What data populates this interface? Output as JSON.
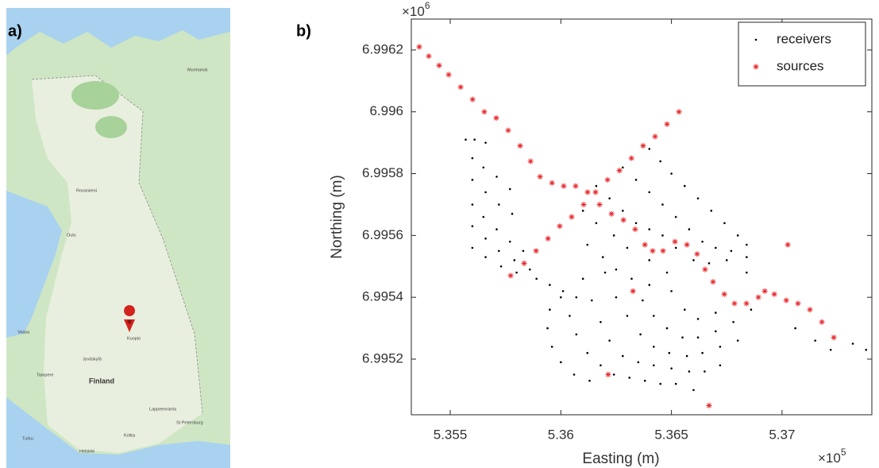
{
  "panel_labels": [
    "a)",
    "b)"
  ],
  "map": {
    "labels": [
      "Finland",
      "Oulu",
      "Kuopio",
      "Tampere",
      "Helsinki",
      "Turku",
      "St Petersburg",
      "Rovaniemi",
      "Vaasa",
      "Jyväskylä",
      "Lappeenranta",
      "Murmansk",
      "Kotka"
    ]
  },
  "chart_data": {
    "type": "scatter",
    "xlabel": "Easting (m)",
    "ylabel": "Northing (m)",
    "x_multiplier": {
      "base": "×10",
      "exponent": "5"
    },
    "y_multiplier": {
      "base": "×10",
      "exponent": "6"
    },
    "xlim": [
      5.35324,
      5.37406
    ],
    "ylim": [
      6.99502,
      6.9963
    ],
    "xticks": [
      5.355,
      5.36,
      5.365,
      5.37
    ],
    "yticks": [
      6.9952,
      6.9954,
      6.9956,
      6.9958,
      6.996,
      6.9962
    ],
    "legend": "upper right",
    "series": [
      {
        "name": "receivers",
        "color": "#000000",
        "marker": "dot",
        "x": [
          5.3557,
          5.3561,
          5.3566,
          5.356,
          5.3565,
          5.3571,
          5.3577,
          5.356,
          5.3566,
          5.3572,
          5.3578,
          5.356,
          5.3565,
          5.3571,
          5.3577,
          5.3583,
          5.356,
          5.3566,
          5.3572,
          5.3579,
          5.3586,
          5.356,
          5.3566,
          5.3573,
          5.358,
          5.3589,
          5.3595,
          5.3601,
          5.3607,
          5.364,
          5.3645,
          5.365,
          5.3656,
          5.3662,
          5.3668,
          5.3674,
          5.368,
          5.3628,
          5.3634,
          5.364,
          5.3646,
          5.3652,
          5.3658,
          5.3664,
          5.367,
          5.3677,
          5.3684,
          5.3616,
          5.3622,
          5.3628,
          5.3634,
          5.364,
          5.3646,
          5.3652,
          5.366,
          5.3667,
          5.3675,
          5.3684,
          5.361,
          5.3616,
          5.3624,
          5.363,
          5.364,
          5.3648,
          5.3612,
          5.3619,
          5.3625,
          5.364,
          5.3684,
          5.3595,
          5.3594,
          5.3596,
          5.36,
          5.3606,
          5.3613,
          5.36,
          5.3604,
          5.3607,
          5.3612,
          5.3618,
          5.3624,
          5.3631,
          5.3638,
          5.3645,
          5.3652,
          5.366,
          5.361,
          5.3614,
          5.3618,
          5.3622,
          5.3628,
          5.3635,
          5.3642,
          5.365,
          5.3658,
          5.3665,
          5.3672,
          5.362,
          5.3625,
          5.363,
          5.3636,
          5.3642,
          5.3649,
          5.3657,
          5.3664,
          5.3672,
          5.368,
          5.3632,
          5.3637,
          5.3642,
          5.3648,
          5.3655,
          5.3662,
          5.367,
          5.3678,
          5.3686,
          5.365,
          5.3656,
          5.3662,
          5.367,
          5.3706,
          5.3715,
          5.3722,
          5.3732,
          5.3738
        ],
        "values": [
          6.99591,
          6.99591,
          6.9959,
          6.99585,
          6.99582,
          6.99579,
          6.99575,
          6.99578,
          6.99574,
          6.9957,
          6.99567,
          6.9957,
          6.99566,
          6.99562,
          6.99558,
          6.99555,
          6.99563,
          6.99559,
          6.99555,
          6.99552,
          6.99549,
          6.99556,
          6.99553,
          6.9955,
          6.99548,
          6.99546,
          6.99544,
          6.99542,
          6.9954,
          6.99588,
          6.99584,
          6.9958,
          6.99576,
          6.99572,
          6.99568,
          6.99564,
          6.9956,
          6.99582,
          6.99578,
          6.99574,
          6.9957,
          6.99566,
          6.99562,
          6.99558,
          6.99556,
          6.99555,
          6.99557,
          6.99576,
          6.99572,
          6.99568,
          6.99564,
          6.99562,
          6.9956,
          6.99556,
          6.99552,
          6.99551,
          6.99552,
          6.99553,
          6.99568,
          6.99564,
          6.9956,
          6.99556,
          6.99552,
          6.99548,
          6.99557,
          6.99553,
          6.99549,
          6.99544,
          6.99548,
          6.99536,
          6.9953,
          6.99524,
          6.99519,
          6.99515,
          6.99513,
          6.9954,
          6.99534,
          6.99528,
          6.99522,
          6.99518,
          6.99515,
          6.99514,
          6.99513,
          6.99512,
          6.99512,
          6.9951,
          6.99546,
          6.99539,
          6.99532,
          6.99526,
          6.99521,
          6.99519,
          6.99518,
          6.99517,
          6.99516,
          6.99516,
          6.99518,
          6.99548,
          6.9954,
          6.99534,
          6.99528,
          6.99524,
          6.99522,
          6.99521,
          6.99522,
          6.99524,
          6.99526,
          6.99546,
          6.99539,
          6.99534,
          6.9953,
          6.99527,
          6.99527,
          6.99529,
          6.99532,
          6.99536,
          6.99542,
          6.99536,
          6.99533,
          6.99535,
          6.9953,
          6.99526,
          6.99523,
          6.99525,
          6.99523
        ]
      },
      {
        "name": "sources",
        "color": "#e8262a",
        "marker": "asterisk",
        "x": [
          5.3536,
          5.35403,
          5.3545,
          5.35493,
          5.35547,
          5.35601,
          5.35654,
          5.35708,
          5.35762,
          5.35816,
          5.35863,
          5.35906,
          5.3596,
          5.36013,
          5.36067,
          5.36121,
          5.36175,
          5.36229,
          5.36283,
          5.36336,
          5.3638,
          5.36415,
          5.36462,
          5.36516,
          5.3657,
          5.36616,
          5.36652,
          5.36688,
          5.36739,
          5.36785,
          5.36839,
          5.36893,
          5.36922,
          5.36965,
          5.37019,
          5.37072,
          5.37126,
          5.3718,
          5.37234,
          5.35773,
          5.35834,
          5.35888,
          5.35942,
          5.35995,
          5.36049,
          5.36103,
          5.36157,
          5.36211,
          5.36265,
          5.36319,
          5.36372,
          5.36426,
          5.3648,
          5.36534,
          5.37026,
          5.36326,
          5.36214,
          5.3667
        ],
        "values": [
          6.99621,
          6.99618,
          6.99615,
          6.99612,
          6.99608,
          6.99604,
          6.996,
          6.99598,
          6.99594,
          6.99589,
          6.99584,
          6.99579,
          6.99577,
          6.99576,
          6.99576,
          6.99574,
          6.9957,
          6.99567,
          6.99565,
          6.99562,
          6.99557,
          6.99555,
          6.99555,
          6.99558,
          6.99557,
          6.99554,
          6.99549,
          6.99545,
          6.99541,
          6.99538,
          6.99538,
          6.9954,
          6.99542,
          6.99541,
          6.99539,
          6.99538,
          6.99536,
          6.99532,
          6.99527,
          6.99547,
          6.99551,
          6.99555,
          6.99559,
          6.99563,
          6.99566,
          6.9957,
          6.99574,
          6.99578,
          6.99581,
          6.99585,
          6.99589,
          6.99592,
          6.99596,
          6.996,
          6.99557,
          6.99542,
          6.99515,
          6.99505
        ]
      }
    ]
  }
}
